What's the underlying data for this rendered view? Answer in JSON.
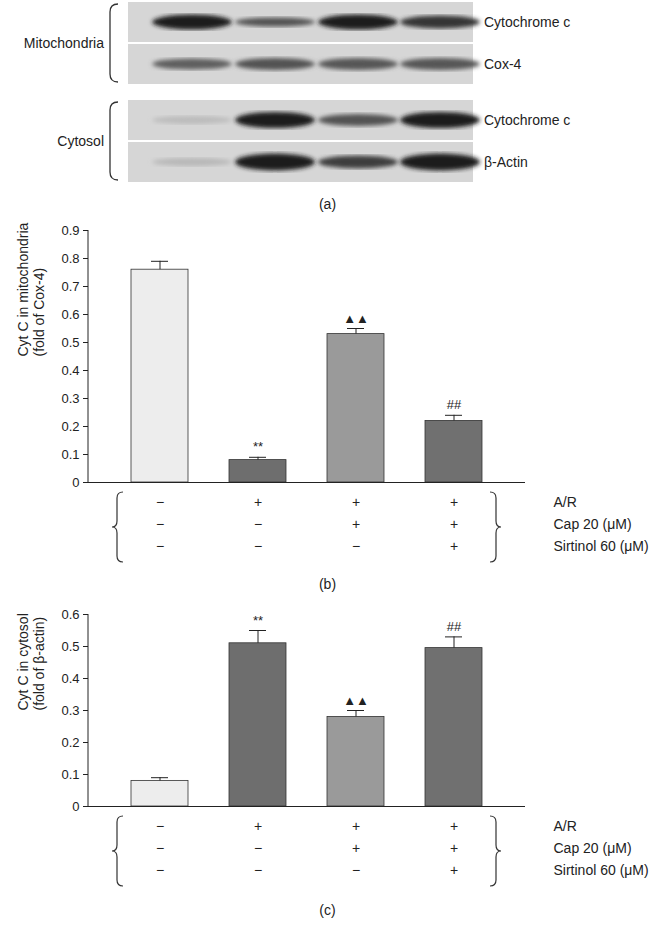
{
  "blot": {
    "caption": "(a)",
    "groups": [
      {
        "name": "Mitochondria",
        "rows": [
          "Cytochrome c",
          "Cox-4"
        ]
      },
      {
        "name": "Cytosol",
        "rows": [
          "Cytochrome c",
          "β-Actin"
        ]
      }
    ]
  },
  "chart_data": [
    {
      "type": "bar",
      "caption": "(b)",
      "y_label": "Cyt C in mitochondria\n(fold of Cox-4)",
      "categories": [
        null,
        null,
        null,
        null
      ],
      "values": [
        0.76,
        0.08,
        0.53,
        0.22
      ],
      "errors": [
        0.03,
        0.01,
        0.02,
        0.02
      ],
      "annotations": [
        null,
        "**",
        "▲▲",
        "##"
      ],
      "colors": [
        "#ededed",
        "#6e6e6e",
        "#9a9a9a",
        "#707070"
      ],
      "ylim": [
        0,
        0.9
      ],
      "yticks": [
        0,
        0.1,
        0.2,
        0.3,
        0.4,
        0.5,
        0.6,
        0.7,
        0.8,
        0.9
      ],
      "treatments": [
        {
          "label": "A/R",
          "signs": [
            "−",
            "+",
            "+",
            "+"
          ]
        },
        {
          "label": "Cap 20 (μM)",
          "signs": [
            "−",
            "−",
            "+",
            "+"
          ]
        },
        {
          "label": "Sirtinol 60 (μM)",
          "signs": [
            "−",
            "−",
            "−",
            "+"
          ]
        }
      ]
    },
    {
      "type": "bar",
      "caption": "(c)",
      "y_label": "Cyt C in cytosol\n(fold of β-actin)",
      "categories": [
        null,
        null,
        null,
        null
      ],
      "values": [
        0.08,
        0.51,
        0.28,
        0.495
      ],
      "errors": [
        0.01,
        0.04,
        0.02,
        0.035
      ],
      "annotations": [
        null,
        "**",
        "▲▲",
        "##"
      ],
      "colors": [
        "#ededed",
        "#6e6e6e",
        "#9a9a9a",
        "#707070"
      ],
      "ylim": [
        0,
        0.6
      ],
      "yticks": [
        0,
        0.1,
        0.2,
        0.3,
        0.4,
        0.5,
        0.6
      ],
      "treatments": [
        {
          "label": "A/R",
          "signs": [
            "−",
            "+",
            "+",
            "+"
          ]
        },
        {
          "label": "Cap 20 (μM)",
          "signs": [
            "−",
            "−",
            "+",
            "+"
          ]
        },
        {
          "label": "Sirtinol 60 (μM)",
          "signs": [
            "−",
            "−",
            "−",
            "+"
          ]
        }
      ]
    }
  ]
}
